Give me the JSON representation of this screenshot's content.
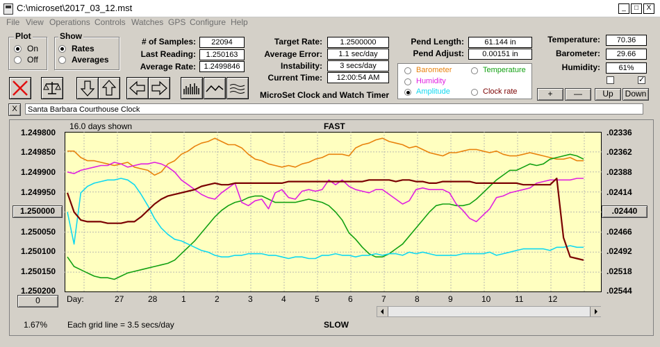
{
  "window": {
    "title": "C:\\microset\\2017_03_12.mst",
    "min": "_",
    "max": "□",
    "close": "X"
  },
  "menu": [
    "File",
    "View",
    "Operations",
    "Controls",
    "Watches",
    "GPS",
    "Configure",
    "Help"
  ],
  "plot_group": {
    "title": "Plot",
    "options": [
      "On",
      "Off"
    ],
    "selected": "On"
  },
  "show_group": {
    "title": "Show",
    "options": [
      "Rates",
      "Averages"
    ],
    "selected": "Rates"
  },
  "stats": {
    "samples_label": "# of Samples:",
    "samples": "22094",
    "last_label": "Last Reading:",
    "last": "1.250163",
    "avg_label": "Average Rate:",
    "avg": "1.2499846",
    "target_label": "Target Rate:",
    "target": "1.2500000",
    "err_label": "Average Error:",
    "err": "1.1 sec/day",
    "inst_label": "Instability:",
    "inst": "3 secs/day",
    "time_label": "Current Time:",
    "time": "12:00:54 AM",
    "pend_len_label": "Pend Length:",
    "pend_len": "61.144 in",
    "pend_adj_label": "Pend Adjust:",
    "pend_adj": "0.00151 in",
    "temp_label": "Temperature:",
    "temp": "70.36",
    "baro_label": "Barometer:",
    "baro": "29.66",
    "hum_label": "Humidity:",
    "hum": "61%"
  },
  "app_name": "MicroSet Clock and Watch Timer",
  "series_legend": [
    {
      "name": "Barometer",
      "color": "#e8820c"
    },
    {
      "name": "Temperature",
      "color": "#12a012"
    },
    {
      "name": "Humidity",
      "color": "#e020e0"
    },
    {
      "name": "Amplitude",
      "color": "#10d8f0",
      "selected": true
    },
    {
      "name": "Clock rate",
      "color": "#7a0000"
    }
  ],
  "adjust_buttons": [
    "+",
    "—",
    "Up",
    "Down"
  ],
  "checkboxes": [
    false,
    true
  ],
  "clock_name": "Santa Barbara Courthouse Clock",
  "close_x": "X",
  "chart_header": {
    "days_shown": "16.0 days shown",
    "fast": "FAST",
    "slow": "SLOW"
  },
  "footer": {
    "percent": "1.67%",
    "grid_note": "Each grid line = 3.5 secs/day",
    "zero_button": "0"
  },
  "chart_data": {
    "type": "line",
    "left_axis_ticks": [
      "1.249800",
      "1.249850",
      "1.249900",
      "1.249950",
      "1.250000",
      "1.250050",
      "1.250100",
      "1.250150",
      "1.250200"
    ],
    "right_axis_ticks": [
      ".02336",
      ".02362",
      ".02388",
      ".02414",
      ".02440",
      ".02466",
      ".02492",
      ".02518",
      ".02544"
    ],
    "left_axis_button": "1.250000",
    "right_axis_button": ".02440",
    "x_first_label": "Day:",
    "x_ticks": [
      "27",
      "28",
      "1",
      "2",
      "3",
      "4",
      "5",
      "6",
      "7",
      "8",
      "9",
      "10",
      "11",
      "12"
    ],
    "series": [
      {
        "name": "Barometer",
        "color": "#e8820c",
        "values": [
          0.12,
          0.12,
          0.16,
          0.18,
          0.18,
          0.19,
          0.2,
          0.21,
          0.2,
          0.19,
          0.22,
          0.23,
          0.24,
          0.27,
          0.25,
          0.2,
          0.18,
          0.14,
          0.12,
          0.09,
          0.07,
          0.06,
          0.04,
          0.06,
          0.08,
          0.08,
          0.1,
          0.14,
          0.17,
          0.18,
          0.2,
          0.21,
          0.22,
          0.21,
          0.22,
          0.2,
          0.19,
          0.17,
          0.16,
          0.14,
          0.14,
          0.14,
          0.15,
          0.1,
          0.08,
          0.07,
          0.05,
          0.04,
          0.06,
          0.07,
          0.08,
          0.1,
          0.09,
          0.11,
          0.13,
          0.14,
          0.15,
          0.13,
          0.13,
          0.12,
          0.11,
          0.11,
          0.12,
          0.13,
          0.12,
          0.14,
          0.15,
          0.15,
          0.14,
          0.13,
          0.14,
          0.15,
          0.16,
          0.17,
          0.17,
          0.16,
          0.18,
          0.18
        ]
      },
      {
        "name": "Temperature",
        "color": "#12a012",
        "values": [
          0.78,
          0.84,
          0.86,
          0.88,
          0.9,
          0.91,
          0.91,
          0.92,
          0.9,
          0.88,
          0.87,
          0.86,
          0.85,
          0.84,
          0.83,
          0.82,
          0.8,
          0.76,
          0.72,
          0.68,
          0.63,
          0.58,
          0.53,
          0.49,
          0.46,
          0.44,
          0.43,
          0.41,
          0.4,
          0.4,
          0.42,
          0.44,
          0.44,
          0.44,
          0.44,
          0.43,
          0.42,
          0.43,
          0.44,
          0.46,
          0.5,
          0.55,
          0.63,
          0.67,
          0.72,
          0.76,
          0.78,
          0.78,
          0.76,
          0.73,
          0.7,
          0.65,
          0.6,
          0.55,
          0.5,
          0.46,
          0.45,
          0.45,
          0.46,
          0.46,
          0.45,
          0.42,
          0.38,
          0.34,
          0.3,
          0.27,
          0.24,
          0.24,
          0.22,
          0.2,
          0.21,
          0.2,
          0.17,
          0.16,
          0.15,
          0.14,
          0.15,
          0.17
        ]
      },
      {
        "name": "Humidity",
        "color": "#e020e0",
        "values": [
          0.25,
          0.26,
          0.24,
          0.23,
          0.22,
          0.21,
          0.21,
          0.19,
          0.2,
          0.22,
          0.21,
          0.2,
          0.2,
          0.19,
          0.2,
          0.22,
          0.25,
          0.3,
          0.33,
          0.36,
          0.39,
          0.41,
          0.42,
          0.38,
          0.35,
          0.32,
          0.44,
          0.46,
          0.43,
          0.42,
          0.48,
          0.38,
          0.36,
          0.41,
          0.42,
          0.37,
          0.36,
          0.37,
          0.36,
          0.3,
          0.33,
          0.3,
          0.34,
          0.36,
          0.37,
          0.38,
          0.36,
          0.36,
          0.39,
          0.42,
          0.45,
          0.43,
          0.36,
          0.35,
          0.36,
          0.36,
          0.36,
          0.38,
          0.45,
          0.49,
          0.54,
          0.56,
          0.52,
          0.48,
          0.41,
          0.4,
          0.38,
          0.37,
          0.36,
          0.35,
          0.32,
          0.31,
          0.3,
          0.3,
          0.3,
          0.3,
          0.29,
          0.29
        ]
      },
      {
        "name": "Amplitude",
        "color": "#10d8f0",
        "values": [
          0.5,
          0.7,
          0.38,
          0.34,
          0.32,
          0.31,
          0.3,
          0.3,
          0.29,
          0.3,
          0.33,
          0.39,
          0.46,
          0.54,
          0.6,
          0.64,
          0.67,
          0.68,
          0.7,
          0.72,
          0.74,
          0.75,
          0.77,
          0.78,
          0.78,
          0.77,
          0.77,
          0.76,
          0.76,
          0.76,
          0.77,
          0.77,
          0.78,
          0.79,
          0.78,
          0.78,
          0.79,
          0.79,
          0.77,
          0.77,
          0.76,
          0.77,
          0.77,
          0.78,
          0.77,
          0.77,
          0.76,
          0.77,
          0.76,
          0.76,
          0.77,
          0.75,
          0.76,
          0.75,
          0.76,
          0.77,
          0.77,
          0.77,
          0.77,
          0.76,
          0.76,
          0.76,
          0.76,
          0.75,
          0.77,
          0.76,
          0.75,
          0.74,
          0.73,
          0.73,
          0.73,
          0.73,
          0.74,
          0.72,
          0.72,
          0.71,
          0.72,
          0.72
        ]
      },
      {
        "name": "Clock rate",
        "color": "#7a0000",
        "values": [
          0.38,
          0.5,
          0.55,
          0.56,
          0.56,
          0.56,
          0.57,
          0.57,
          0.57,
          0.56,
          0.56,
          0.53,
          0.49,
          0.45,
          0.42,
          0.4,
          0.39,
          0.38,
          0.37,
          0.36,
          0.34,
          0.33,
          0.32,
          0.33,
          0.33,
          0.32,
          0.32,
          0.32,
          0.32,
          0.32,
          0.32,
          0.32,
          0.32,
          0.31,
          0.31,
          0.31,
          0.31,
          0.31,
          0.31,
          0.31,
          0.31,
          0.31,
          0.31,
          0.31,
          0.31,
          0.3,
          0.3,
          0.3,
          0.3,
          0.31,
          0.3,
          0.3,
          0.31,
          0.31,
          0.32,
          0.32,
          0.31,
          0.31,
          0.31,
          0.31,
          0.31,
          0.32,
          0.32,
          0.32,
          0.32,
          0.32,
          0.32,
          0.32,
          0.33,
          0.33,
          0.33,
          0.33,
          0.33,
          0.29,
          0.66,
          0.78,
          0.79,
          0.8
        ]
      }
    ],
    "grid": true
  }
}
